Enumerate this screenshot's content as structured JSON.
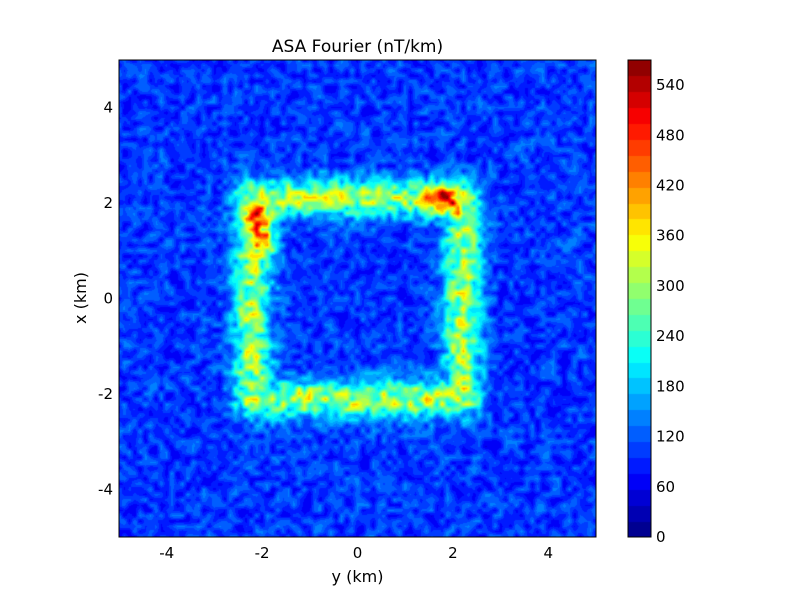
{
  "chart_data": {
    "type": "heatmap",
    "title": "ASA Fourier (nT/km)",
    "xlabel": "y (km)",
    "ylabel": "x (km)",
    "xlim": [
      -5,
      5
    ],
    "ylim": [
      -5,
      5
    ],
    "xticks": [
      -4,
      -2,
      0,
      2,
      4
    ],
    "yticks": [
      -4,
      -2,
      0,
      2,
      4
    ],
    "xtick_labels": [
      "-4",
      "-2",
      "0",
      "2",
      "4"
    ],
    "ytick_labels": [
      "-4",
      "-2",
      "0",
      "2",
      "4"
    ],
    "colormap": "jet",
    "colorbar": {
      "min": 0,
      "max": 570,
      "ticks": [
        0,
        60,
        120,
        180,
        240,
        300,
        360,
        420,
        480,
        540
      ],
      "tick_labels": [
        "0",
        "60",
        "120",
        "180",
        "240",
        "300",
        "360",
        "420",
        "480",
        "540"
      ],
      "levels": 30
    },
    "background_level": 100,
    "anomaly": {
      "shape": "square ring",
      "y_range": [
        -2.2,
        2.2
      ],
      "x_range": [
        -2.1,
        2.1
      ],
      "ring_level": 300,
      "peak_level": 500,
      "peaks": [
        {
          "y": -2.0,
          "x": 1.7,
          "value": 500
        },
        {
          "y": -1.9,
          "x": 1.2,
          "value": 470
        },
        {
          "y": 1.9,
          "x": 2.0,
          "value": 470
        },
        {
          "y": 1.7,
          "x": 2.1,
          "value": 440
        }
      ]
    },
    "grid": false
  }
}
